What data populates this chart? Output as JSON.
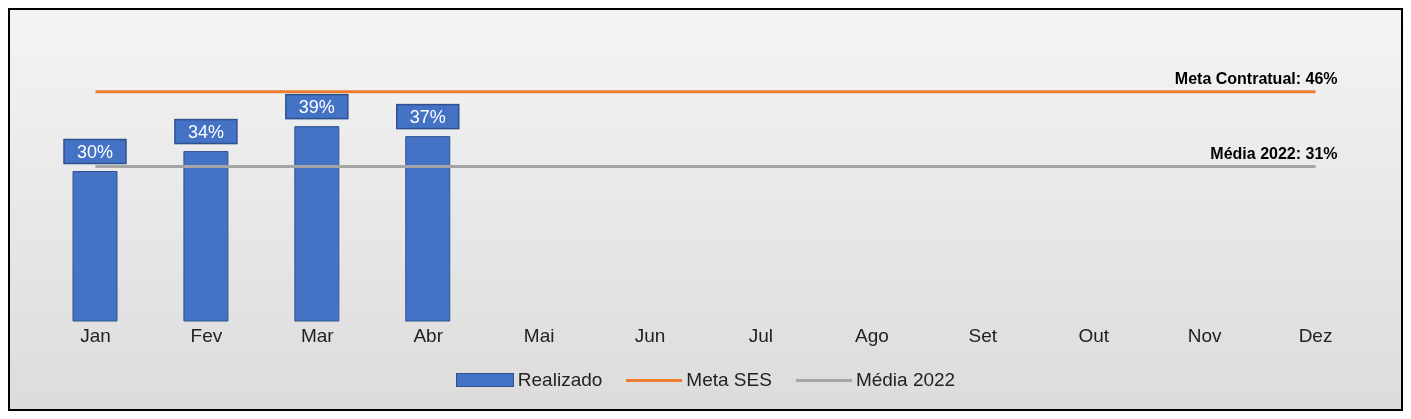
{
  "chart_data": {
    "type": "bar",
    "categories": [
      "Jan",
      "Fev",
      "Mar",
      "Abr",
      "Mai",
      "Jun",
      "Jul",
      "Ago",
      "Set",
      "Out",
      "Nov",
      "Dez"
    ],
    "series": [
      {
        "name": "Realizado",
        "type": "bar",
        "color": "#4472c4",
        "values": [
          30,
          34,
          39,
          37,
          null,
          null,
          null,
          null,
          null,
          null,
          null,
          null
        ],
        "value_labels": [
          "30%",
          "34%",
          "39%",
          "37%",
          null,
          null,
          null,
          null,
          null,
          null,
          null,
          null
        ]
      },
      {
        "name": "Meta SES",
        "type": "line",
        "color": "#ed7d31",
        "values": [
          46,
          46,
          46,
          46,
          46,
          46,
          46,
          46,
          46,
          46,
          46,
          46
        ]
      },
      {
        "name": "Média 2022",
        "type": "line",
        "color": "#a5a5a5",
        "values": [
          31,
          31,
          31,
          31,
          31,
          31,
          31,
          31,
          31,
          31,
          31,
          31
        ]
      }
    ],
    "annotations": [
      {
        "text": "Meta  Contratual: 46%",
        "x": "Dez",
        "y": 46
      },
      {
        "text": "Média 2022: 31%",
        "x": "Dez",
        "y": 31
      }
    ],
    "grid": false,
    "legend": "bottom",
    "marker": "none",
    "line_style": "solid"
  }
}
